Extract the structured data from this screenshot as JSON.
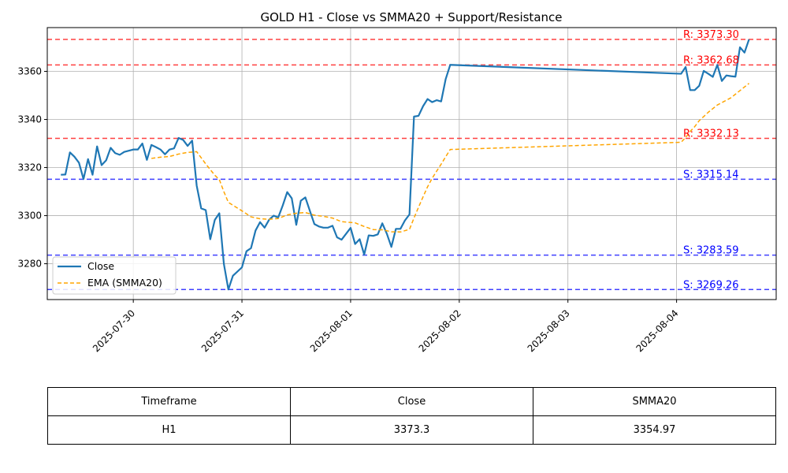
{
  "chart_data": {
    "type": "line",
    "title": "GOLD H1 - Close vs SMMA20 + Support/Resistance",
    "x_tick_labels": [
      "2025-07-30",
      "2025-07-31",
      "2025-08-01",
      "2025-08-02",
      "2025-08-03",
      "2025-08-04"
    ],
    "y_ticks": [
      3280,
      3300,
      3320,
      3340,
      3360
    ],
    "ylim": [
      3265.1,
      3378.2
    ],
    "xlim": [
      "2025-07-29 05:00",
      "2025-08-04 22:00"
    ],
    "grid": true,
    "legend_position": "center-left",
    "series": [
      {
        "name": "Close",
        "color": "#1f77b4",
        "style": "solid",
        "points": [
          [
            "2025-07-29 08:00",
            3317
          ],
          [
            "2025-07-29 09:00",
            3317.1
          ],
          [
            "2025-07-29 10:00",
            3326.3
          ],
          [
            "2025-07-29 11:00",
            3324.5
          ],
          [
            "2025-07-29 12:00",
            3322
          ],
          [
            "2025-07-29 13:00",
            3315.2
          ],
          [
            "2025-07-29 14:00",
            3323.5
          ],
          [
            "2025-07-29 15:00",
            3317
          ],
          [
            "2025-07-29 16:00",
            3328.8
          ],
          [
            "2025-07-29 17:00",
            3321
          ],
          [
            "2025-07-29 18:00",
            3323
          ],
          [
            "2025-07-29 19:00",
            3328.2
          ],
          [
            "2025-07-29 20:00",
            3326
          ],
          [
            "2025-07-29 21:00",
            3325.3
          ],
          [
            "2025-07-29 22:00",
            3326.5
          ],
          [
            "2025-07-30 00:00",
            3327.5
          ],
          [
            "2025-07-30 01:00",
            3327.5
          ],
          [
            "2025-07-30 02:00",
            3330
          ],
          [
            "2025-07-30 03:00",
            3323.2
          ],
          [
            "2025-07-30 04:00",
            3329.4
          ],
          [
            "2025-07-30 05:00",
            3328.5
          ],
          [
            "2025-07-30 06:00",
            3327.5
          ],
          [
            "2025-07-30 07:00",
            3325.5
          ],
          [
            "2025-07-30 08:00",
            3327.5
          ],
          [
            "2025-07-30 09:00",
            3328
          ],
          [
            "2025-07-30 10:00",
            3332.3
          ],
          [
            "2025-07-30 11:00",
            3331.5
          ],
          [
            "2025-07-30 12:00",
            3329
          ],
          [
            "2025-07-30 13:00",
            3331.2
          ],
          [
            "2025-07-30 14:00",
            3312.5
          ],
          [
            "2025-07-30 15:00",
            3303
          ],
          [
            "2025-07-30 16:00",
            3302.3
          ],
          [
            "2025-07-30 17:00",
            3290.2
          ],
          [
            "2025-07-30 18:00",
            3298.2
          ],
          [
            "2025-07-30 19:00",
            3301
          ],
          [
            "2025-07-30 20:00",
            3280
          ],
          [
            "2025-07-30 21:00",
            3269.3
          ],
          [
            "2025-07-30 22:00",
            3275
          ],
          [
            "2025-07-31 00:00",
            3278.5
          ],
          [
            "2025-07-31 01:00",
            3285.2
          ],
          [
            "2025-07-31 02:00",
            3286.5
          ],
          [
            "2025-07-31 03:00",
            3293.8
          ],
          [
            "2025-07-31 04:00",
            3297.3
          ],
          [
            "2025-07-31 05:00",
            3295
          ],
          [
            "2025-07-31 06:00",
            3298.3
          ],
          [
            "2025-07-31 07:00",
            3300
          ],
          [
            "2025-07-31 08:00",
            3299.2
          ],
          [
            "2025-07-31 09:00",
            3304.2
          ],
          [
            "2025-07-31 10:00",
            3309.8
          ],
          [
            "2025-07-31 11:00",
            3307.2
          ],
          [
            "2025-07-31 12:00",
            3296.2
          ],
          [
            "2025-07-31 13:00",
            3306.2
          ],
          [
            "2025-07-31 14:00",
            3307.6
          ],
          [
            "2025-07-31 15:00",
            3302
          ],
          [
            "2025-07-31 16:00",
            3296.5
          ],
          [
            "2025-07-31 17:00",
            3295.5
          ],
          [
            "2025-07-31 18:00",
            3295
          ],
          [
            "2025-07-31 19:00",
            3295
          ],
          [
            "2025-07-31 20:00",
            3295.8
          ],
          [
            "2025-07-31 21:00",
            3291
          ],
          [
            "2025-07-31 22:00",
            3290
          ],
          [
            "2025-08-01 00:00",
            3294.9
          ],
          [
            "2025-08-01 01:00",
            3288.2
          ],
          [
            "2025-08-01 02:00",
            3290.2
          ],
          [
            "2025-08-01 03:00",
            3283.8
          ],
          [
            "2025-08-01 04:00",
            3291.8
          ],
          [
            "2025-08-01 05:00",
            3291.6
          ],
          [
            "2025-08-01 06:00",
            3292.2
          ],
          [
            "2025-08-01 07:00",
            3296.8
          ],
          [
            "2025-08-01 08:00",
            3292.5
          ],
          [
            "2025-08-01 09:00",
            3287
          ],
          [
            "2025-08-01 10:00",
            3294.5
          ],
          [
            "2025-08-01 11:00",
            3294.5
          ],
          [
            "2025-08-01 12:00",
            3298
          ],
          [
            "2025-08-01 13:00",
            3300.5
          ],
          [
            "2025-08-01 14:00",
            3341.2
          ],
          [
            "2025-08-01 15:00",
            3341.5
          ],
          [
            "2025-08-01 16:00",
            3345.5
          ],
          [
            "2025-08-01 17:00",
            3348.5
          ],
          [
            "2025-08-01 18:00",
            3347.2
          ],
          [
            "2025-08-01 19:00",
            3348
          ],
          [
            "2025-08-01 20:00",
            3347.5
          ],
          [
            "2025-08-01 21:00",
            3356.8
          ],
          [
            "2025-08-01 22:00",
            3362.7
          ],
          [
            "2025-08-04 01:00",
            3359
          ],
          [
            "2025-08-04 02:00",
            3361.8
          ],
          [
            "2025-08-04 03:00",
            3352.2
          ],
          [
            "2025-08-04 04:00",
            3352.2
          ],
          [
            "2025-08-04 05:00",
            3354
          ],
          [
            "2025-08-04 06:00",
            3360.2
          ],
          [
            "2025-08-04 07:00",
            3359
          ],
          [
            "2025-08-04 08:00",
            3357.7
          ],
          [
            "2025-08-04 09:00",
            3362.7
          ],
          [
            "2025-08-04 10:00",
            3356
          ],
          [
            "2025-08-04 11:00",
            3358.3
          ],
          [
            "2025-08-04 12:00",
            3358
          ],
          [
            "2025-08-04 13:00",
            3357.8
          ],
          [
            "2025-08-04 14:00",
            3370
          ],
          [
            "2025-08-04 15:00",
            3367.8
          ],
          [
            "2025-08-04 16:00",
            3373.3
          ]
        ]
      },
      {
        "name": "EMA (SMMA20)",
        "color": "#ffa500",
        "style": "dashed",
        "points": [
          [
            "2025-07-30 04:00",
            3323.8
          ],
          [
            "2025-07-30 06:00",
            3324.3
          ],
          [
            "2025-07-30 08:00",
            3324.6
          ],
          [
            "2025-07-30 10:00",
            3325.6
          ],
          [
            "2025-07-30 12:00",
            3326.3
          ],
          [
            "2025-07-30 14:00",
            3326.6
          ],
          [
            "2025-07-30 16:00",
            3321.5
          ],
          [
            "2025-07-30 18:00",
            3316.8
          ],
          [
            "2025-07-30 19:00",
            3315
          ],
          [
            "2025-07-30 20:00",
            3310
          ],
          [
            "2025-07-30 21:00",
            3305.5
          ],
          [
            "2025-07-31 00:00",
            3302
          ],
          [
            "2025-07-31 02:00",
            3299.5
          ],
          [
            "2025-07-31 04:00",
            3298.7
          ],
          [
            "2025-07-31 06:00",
            3298.5
          ],
          [
            "2025-07-31 08:00",
            3298.8
          ],
          [
            "2025-07-31 10:00",
            3300.3
          ],
          [
            "2025-07-31 12:00",
            3301
          ],
          [
            "2025-07-31 14:00",
            3301.3
          ],
          [
            "2025-07-31 16:00",
            3300.2
          ],
          [
            "2025-07-31 18:00",
            3299.7
          ],
          [
            "2025-07-31 20:00",
            3299
          ],
          [
            "2025-07-31 22:00",
            3297.5
          ],
          [
            "2025-08-01 01:00",
            3297
          ],
          [
            "2025-08-01 03:00",
            3295.5
          ],
          [
            "2025-08-01 05:00",
            3294.2
          ],
          [
            "2025-08-01 07:00",
            3294.1
          ],
          [
            "2025-08-01 09:00",
            3293.3
          ],
          [
            "2025-08-01 11:00",
            3293.2
          ],
          [
            "2025-08-01 13:00",
            3294.3
          ],
          [
            "2025-08-01 14:00",
            3299
          ],
          [
            "2025-08-01 15:00",
            3303.5
          ],
          [
            "2025-08-01 16:00",
            3307.8
          ],
          [
            "2025-08-01 17:00",
            3312
          ],
          [
            "2025-08-01 18:00",
            3315.5
          ],
          [
            "2025-08-01 19:00",
            3318.5
          ],
          [
            "2025-08-01 20:00",
            3321.4
          ],
          [
            "2025-08-01 21:00",
            3324.5
          ],
          [
            "2025-08-01 22:00",
            3327.5
          ],
          [
            "2025-08-04 01:00",
            3330.5
          ],
          [
            "2025-08-04 02:00",
            3332.5
          ],
          [
            "2025-08-04 03:00",
            3335
          ],
          [
            "2025-08-04 04:00",
            3337
          ],
          [
            "2025-08-04 05:00",
            3339.5
          ],
          [
            "2025-08-04 06:00",
            3341.2
          ],
          [
            "2025-08-04 07:00",
            3343
          ],
          [
            "2025-08-04 08:00",
            3344.5
          ],
          [
            "2025-08-04 09:00",
            3346
          ],
          [
            "2025-08-04 10:00",
            3347
          ],
          [
            "2025-08-04 11:00",
            3348
          ],
          [
            "2025-08-04 12:00",
            3349
          ],
          [
            "2025-08-04 13:00",
            3350.5
          ],
          [
            "2025-08-04 14:00",
            3352
          ],
          [
            "2025-08-04 15:00",
            3353.5
          ],
          [
            "2025-08-04 16:00",
            3355
          ]
        ]
      }
    ],
    "levels": [
      {
        "kind": "resistance",
        "value": 3373.3,
        "label": "R: 3373.30",
        "color": "#ff0000"
      },
      {
        "kind": "resistance",
        "value": 3362.68,
        "label": "R: 3362.68",
        "color": "#ff0000"
      },
      {
        "kind": "resistance",
        "value": 3332.13,
        "label": "R: 3332.13",
        "color": "#ff0000"
      },
      {
        "kind": "support",
        "value": 3315.14,
        "label": "S: 3315.14",
        "color": "#0000ff"
      },
      {
        "kind": "support",
        "value": 3283.59,
        "label": "S: 3283.59",
        "color": "#0000ff"
      },
      {
        "kind": "support",
        "value": 3269.26,
        "label": "S: 3269.26",
        "color": "#0000ff"
      }
    ]
  },
  "table": {
    "headers": [
      "Timeframe",
      "Close",
      "SMMA20"
    ],
    "row": [
      "H1",
      "3373.3",
      "3354.97"
    ]
  }
}
